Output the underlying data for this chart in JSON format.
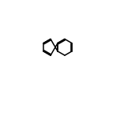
{
  "bg_color": "#ffffff",
  "bond_color": "#000000",
  "figsize": [
    1.52,
    1.52
  ],
  "dpi": 100,
  "lw": 1.1,
  "fs": 6.8
}
